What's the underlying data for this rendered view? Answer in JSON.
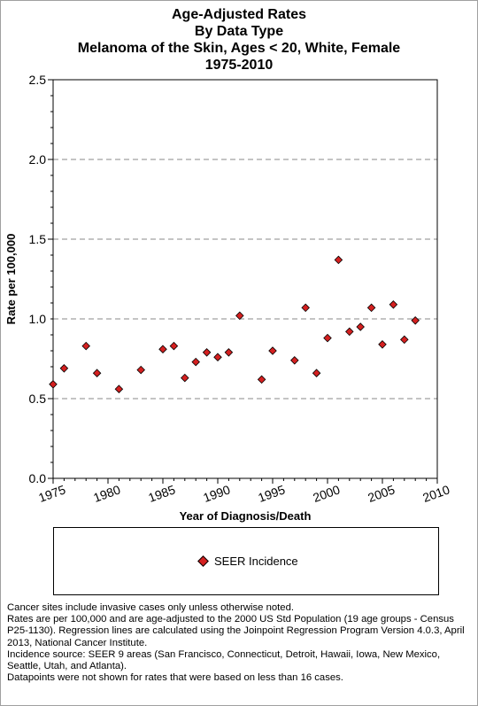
{
  "title_lines": [
    "Age-Adjusted  Rates",
    "By Data Type",
    "Melanoma of the Skin, Ages < 20, White, Female",
    "1975-2010"
  ],
  "footnotes": [
    "Cancer sites include invasive cases only unless otherwise noted.",
    "Rates are per 100,000 and are age-adjusted to the 2000 US Std Population (19 age groups - Census P25-1130). Regression lines are calculated using the Joinpoint Regression Program Version 4.0.3, April 2013, National Cancer Institute.",
    "Incidence source: SEER 9 areas (San Francisco, Connecticut, Detroit, Hawaii, Iowa, New Mexico, Seattle, Utah, and Atlanta).",
    "Datapoints were not shown for rates that were based on less than 16 cases."
  ],
  "chart_data": {
    "type": "scatter",
    "xlabel": "Year of Diagnosis/Death",
    "ylabel": "Rate per 100,000",
    "xlim": [
      1975,
      2010
    ],
    "ylim": [
      0,
      2.5
    ],
    "x_ticks": [
      1975,
      1980,
      1985,
      1990,
      1995,
      2000,
      2005,
      2010
    ],
    "y_ticks": [
      "0.0",
      "0.5",
      "1.0",
      "1.5",
      "2.0",
      "2.5"
    ],
    "grid": "horizontal dashed at 0.5, 1.0, 1.5, 2.0",
    "legend": "bottom-box",
    "series": [
      {
        "name": "SEER Incidence",
        "color": "#d42020",
        "marker": "diamond",
        "points": [
          [
            1975,
            0.59
          ],
          [
            1976,
            0.69
          ],
          [
            1978,
            0.83
          ],
          [
            1979,
            0.66
          ],
          [
            1981,
            0.56
          ],
          [
            1983,
            0.68
          ],
          [
            1985,
            0.81
          ],
          [
            1986,
            0.83
          ],
          [
            1987,
            0.63
          ],
          [
            1988,
            0.73
          ],
          [
            1989,
            0.79
          ],
          [
            1990,
            0.76
          ],
          [
            1991,
            0.79
          ],
          [
            1992,
            1.02
          ],
          [
            1994,
            0.62
          ],
          [
            1995,
            0.8
          ],
          [
            1997,
            0.74
          ],
          [
            1998,
            1.07
          ],
          [
            1999,
            0.66
          ],
          [
            2000,
            0.88
          ],
          [
            2001,
            1.37
          ],
          [
            2002,
            0.92
          ],
          [
            2003,
            0.95
          ],
          [
            2004,
            1.07
          ],
          [
            2005,
            0.84
          ],
          [
            2006,
            1.09
          ],
          [
            2007,
            0.87
          ],
          [
            2008,
            0.99
          ]
        ]
      }
    ]
  }
}
